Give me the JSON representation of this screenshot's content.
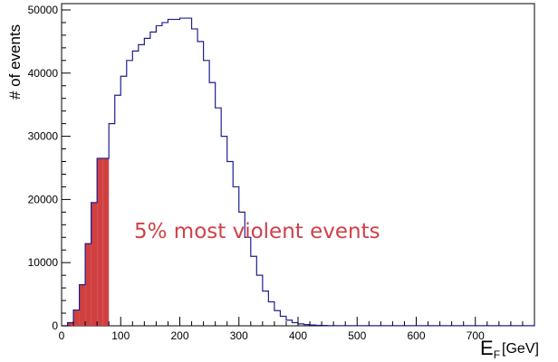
{
  "chart_data": {
    "type": "bar",
    "histogram_type": "step",
    "xlabel_main": "E",
    "xlabel_sub": "F",
    "xlabel_unit": "[GeV]",
    "ylabel": "# of events",
    "xlim": [
      0,
      800
    ],
    "ylim": [
      0,
      51000
    ],
    "xticks": [
      0,
      100,
      200,
      300,
      400,
      500,
      600,
      700
    ],
    "yticks": [
      0,
      10000,
      20000,
      30000,
      40000,
      50000
    ],
    "bin_width": 10,
    "x_bin_edges_start": 0,
    "series": [
      {
        "style": "step-outline",
        "color": "#1f1f8f",
        "values": [
          0,
          500,
          2500,
          6500,
          13000,
          19500,
          26500,
          26500,
          32000,
          36500,
          39500,
          42000,
          43500,
          44500,
          45500,
          46500,
          47500,
          48000,
          48500,
          48500,
          48700,
          48700,
          47000,
          45000,
          42000,
          38500,
          34500,
          30000,
          26000,
          22000,
          18000,
          14000,
          11000,
          8000,
          5500,
          3800,
          2400,
          1500,
          900,
          500,
          300,
          200,
          120,
          80,
          50,
          30,
          30,
          20,
          20,
          20,
          20,
          20,
          20,
          20,
          20,
          20,
          20,
          20,
          20,
          20,
          20,
          20,
          20,
          20,
          20,
          20,
          20,
          20,
          20,
          20,
          20,
          20,
          20,
          20,
          20,
          20,
          20,
          20,
          20,
          20
        ]
      },
      {
        "style": "filled",
        "color": "#d04040",
        "values": [
          0,
          500,
          2500,
          6500,
          13000,
          19500,
          26500,
          26500
        ]
      }
    ],
    "annotation": {
      "text": "5% most violent events",
      "color": "#d04048"
    },
    "grid": false
  }
}
